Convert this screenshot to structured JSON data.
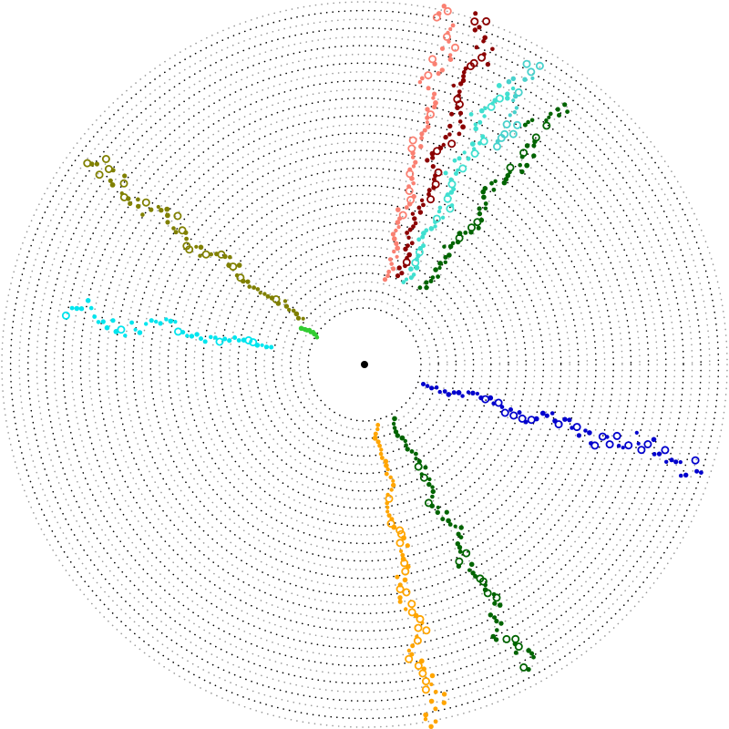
{
  "diagram": {
    "type": "radial-dotted-track-plot",
    "description_text": "",
    "ring_count": 36,
    "ring_colors": [
      "#000000",
      "#9a9a9a"
    ],
    "center_marker_color": "#000000",
    "branches": [
      {
        "name": "dark-red-branch",
        "color": "#8b0000",
        "angle_deg": -70,
        "start": 0.26,
        "end": 1.01,
        "density": 70
      },
      {
        "name": "salmon-branch",
        "color": "#fa8072",
        "angle_deg": -76,
        "start": 0.24,
        "end": 1.03,
        "density": 70
      },
      {
        "name": "aquamarine-branch",
        "color": "#40e0d0",
        "angle_deg": -64,
        "start": 0.25,
        "end": 0.86,
        "density": 60
      },
      {
        "name": "dark-green-upper-branch",
        "color": "#006400",
        "angle_deg": -53,
        "start": 0.26,
        "end": 0.9,
        "density": 60
      },
      {
        "name": "turquoise-upper-right-branch",
        "color": "#48d1cc",
        "angle_deg": -60,
        "start": 0.7,
        "end": 0.95,
        "density": 20
      },
      {
        "name": "olive-branch",
        "color": "#808000",
        "angle_deg": -144,
        "start": 0.21,
        "end": 0.94,
        "density": 65
      },
      {
        "name": "cyan-left-branch",
        "color": "#00e5ee",
        "angle_deg": -170,
        "start": 0.26,
        "end": 0.83,
        "density": 45
      },
      {
        "name": "lime-green-branch",
        "color": "#32cd32",
        "angle_deg": -150,
        "start": 0.15,
        "end": 0.2,
        "density": 10
      },
      {
        "name": "blue-branch",
        "color": "#0000cd",
        "angle_deg": 17,
        "start": 0.17,
        "end": 0.97,
        "density": 65
      },
      {
        "name": "dark-green-lower-branch",
        "color": "#006400",
        "angle_deg": 62,
        "start": 0.17,
        "end": 0.95,
        "density": 70
      },
      {
        "name": "orange-branch",
        "color": "#ffa500",
        "angle_deg": 79,
        "start": 0.17,
        "end": 1.01,
        "density": 75
      }
    ]
  }
}
